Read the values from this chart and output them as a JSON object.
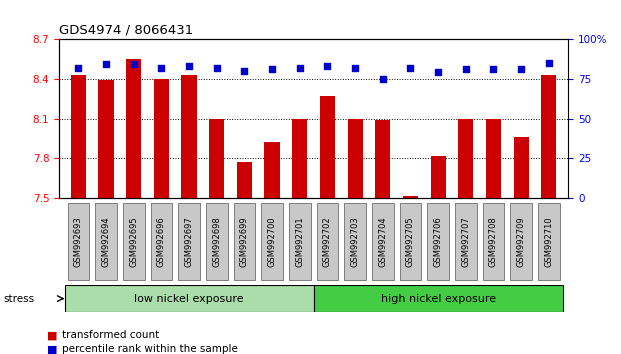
{
  "title": "GDS4974 / 8066431",
  "samples": [
    "GSM992693",
    "GSM992694",
    "GSM992695",
    "GSM992696",
    "GSM992697",
    "GSM992698",
    "GSM992699",
    "GSM992700",
    "GSM992701",
    "GSM992702",
    "GSM992703",
    "GSM992704",
    "GSM992705",
    "GSM992706",
    "GSM992707",
    "GSM992708",
    "GSM992709",
    "GSM992710"
  ],
  "transformed_counts": [
    8.43,
    8.39,
    8.55,
    8.4,
    8.43,
    8.1,
    7.77,
    7.92,
    8.1,
    8.27,
    8.1,
    8.09,
    7.52,
    7.82,
    8.1,
    8.1,
    7.96,
    8.43
  ],
  "percentile_ranks": [
    82,
    84,
    84,
    82,
    83,
    82,
    80,
    81,
    82,
    83,
    82,
    75,
    82,
    79,
    81,
    81,
    81,
    85
  ],
  "ylim_left": [
    7.5,
    8.7
  ],
  "ylim_right": [
    0,
    100
  ],
  "bar_color": "#cc0000",
  "dot_color": "#0000cc",
  "bar_bottom": 7.5,
  "groups": [
    {
      "label": "low nickel exposure",
      "start": 0,
      "end": 9,
      "color": "#aaddaa"
    },
    {
      "label": "high nickel exposure",
      "start": 9,
      "end": 18,
      "color": "#44cc44"
    }
  ],
  "group_row_label": "stress",
  "yticks_left": [
    7.5,
    7.8,
    8.1,
    8.4,
    8.7
  ],
  "yticks_right": [
    0,
    25,
    50,
    75,
    100
  ],
  "grid_color": "black",
  "background_color": "#ffffff",
  "legend_items": [
    {
      "label": "transformed count",
      "color": "#cc0000"
    },
    {
      "label": "percentile rank within the sample",
      "color": "#0000cc"
    }
  ]
}
